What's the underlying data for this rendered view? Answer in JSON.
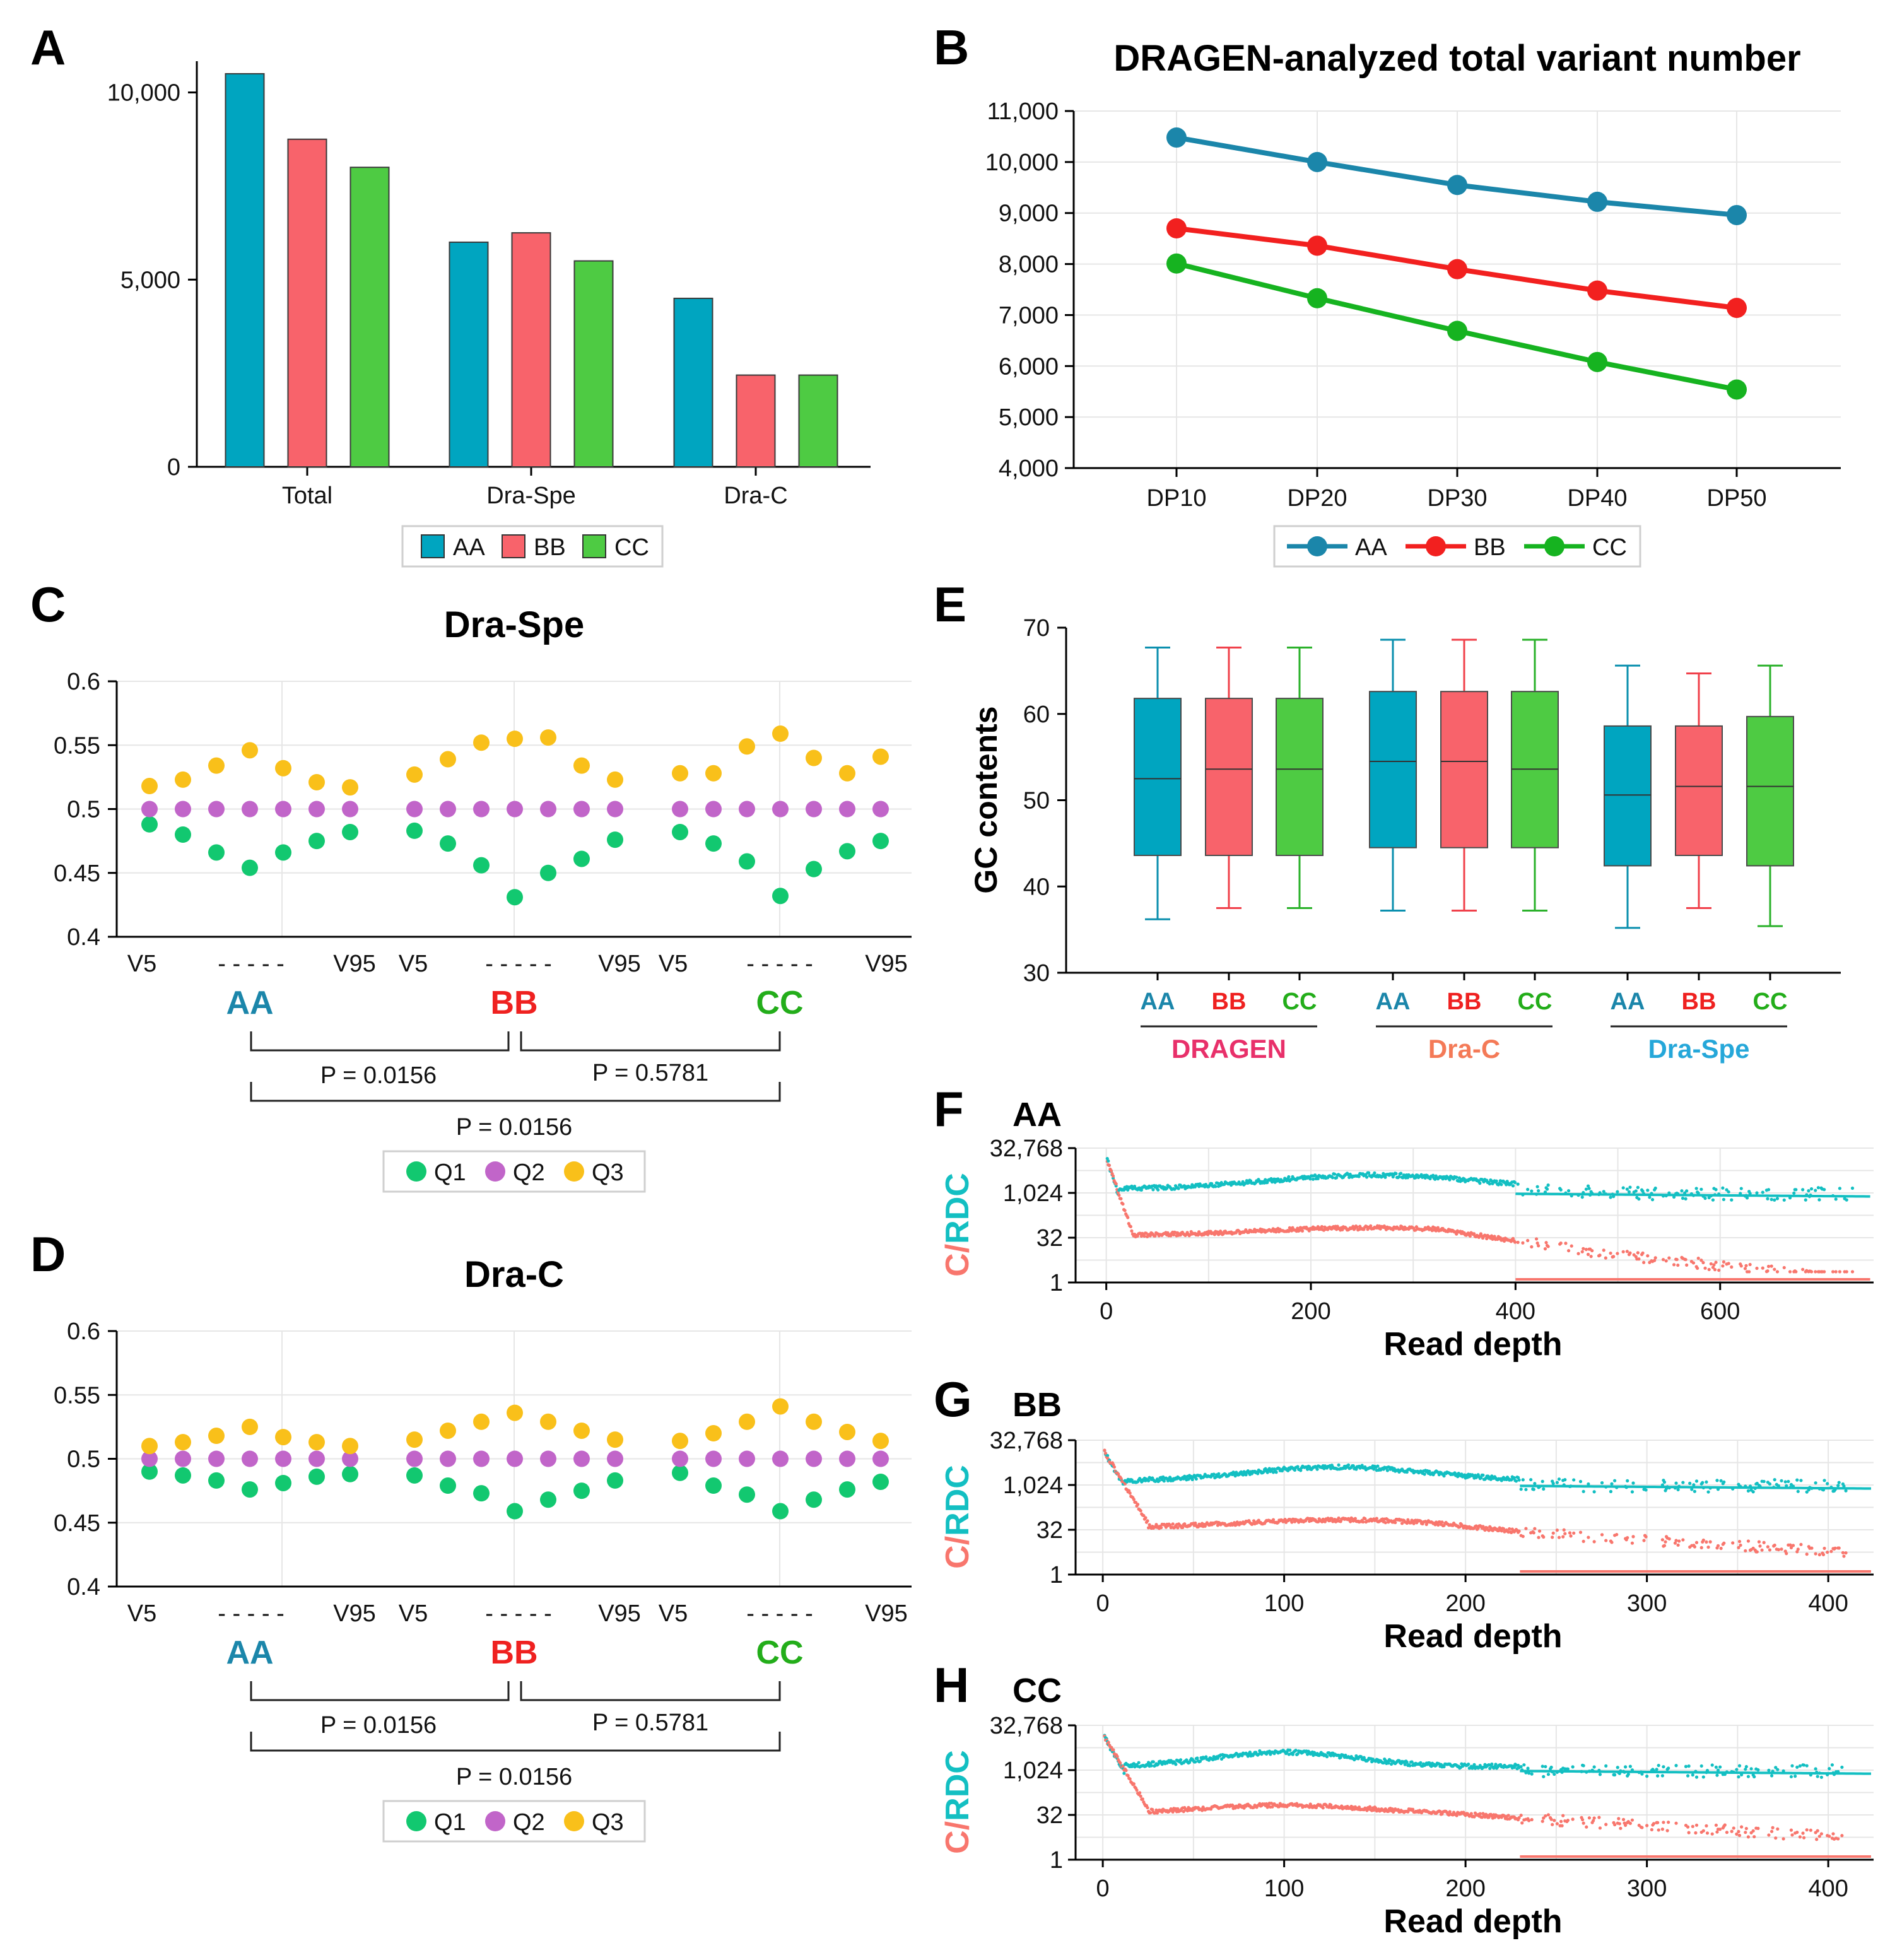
{
  "panels": {
    "A": {
      "letter": "A"
    },
    "B": {
      "letter": "B"
    },
    "C": {
      "letter": "C"
    },
    "D": {
      "letter": "D"
    },
    "E": {
      "letter": "E"
    },
    "F": {
      "letter": "F"
    },
    "G": {
      "letter": "G"
    },
    "H": {
      "letter": "H"
    }
  },
  "colors": {
    "AA": "#00a5c0",
    "BB": "#f8636b",
    "CC": "#4ecb43",
    "line_AA": "#1b86aa",
    "line_BB": "#f2201f",
    "line_CC": "#16b320",
    "Q1": "#12c870",
    "Q2": "#c165c9",
    "Q3": "#f9c01a",
    "C_series": "#13bfc2",
    "RDC_series": "#f8766d",
    "txt_AA": "#1b86aa",
    "txt_BB": "#ef2120",
    "txt_CC": "#23ad1a",
    "grp_DRAGEN": "#e8306a",
    "grp_DraC": "#f47a57",
    "grp_DraSpe": "#25a7d9"
  },
  "chart_data": [
    {
      "id": "A",
      "type": "bar",
      "title": "",
      "categories": [
        "Total",
        "Dra-Spe",
        "Dra-C"
      ],
      "series": [
        {
          "name": "AA",
          "values": [
            10500,
            6000,
            4500
          ]
        },
        {
          "name": "BB",
          "values": [
            8750,
            6250,
            2450
          ]
        },
        {
          "name": "CC",
          "values": [
            8000,
            5500,
            2450
          ]
        }
      ],
      "ylim": [
        0,
        10700
      ],
      "yticks": [
        0,
        5000,
        10000
      ],
      "ytick_labels": [
        "0",
        "5,000",
        "10,000"
      ],
      "legend": [
        "AA",
        "BB",
        "CC"
      ]
    },
    {
      "id": "B",
      "type": "line",
      "title": "DRAGEN-analyzed total variant number",
      "categories": [
        "DP10",
        "DP20",
        "DP30",
        "DP40",
        "DP50"
      ],
      "series": [
        {
          "name": "AA",
          "values": [
            10480,
            10000,
            9550,
            9220,
            8960
          ]
        },
        {
          "name": "BB",
          "values": [
            8700,
            8360,
            7900,
            7480,
            7140
          ]
        },
        {
          "name": "CC",
          "values": [
            8010,
            7330,
            6690,
            6080,
            5540
          ]
        }
      ],
      "ylim": [
        4000,
        11000
      ],
      "yticks": [
        4000,
        5000,
        6000,
        7000,
        8000,
        9000,
        10000,
        11000
      ],
      "ytick_labels": [
        "4,000",
        "5,000",
        "6,000",
        "7,000",
        "8,000",
        "9,000",
        "10,000",
        "11,000"
      ],
      "legend": [
        "AA",
        "BB",
        "CC"
      ]
    },
    {
      "id": "C",
      "type": "scatter",
      "title": "Dra-Spe",
      "ylim": [
        0.4,
        0.6
      ],
      "yticks": [
        0.4,
        0.45,
        0.5,
        0.55,
        0.6
      ],
      "ytick_labels": [
        "0.4",
        "0.45",
        "0.5",
        "0.55",
        "0.6"
      ],
      "groups": [
        "AA",
        "BB",
        "CC"
      ],
      "series": [
        {
          "name": "Q1",
          "values": [
            0.488,
            0.48,
            0.466,
            0.454,
            0.466,
            0.475,
            0.482,
            0.483,
            0.473,
            0.456,
            0.431,
            0.45,
            0.461,
            0.476,
            0.482,
            0.473,
            0.459,
            0.432,
            0.453,
            0.467,
            0.475
          ]
        },
        {
          "name": "Q2",
          "values": [
            0.5,
            0.5,
            0.5,
            0.5,
            0.5,
            0.5,
            0.5,
            0.5,
            0.5,
            0.5,
            0.5,
            0.5,
            0.5,
            0.5,
            0.5,
            0.5,
            0.5,
            0.5,
            0.5,
            0.5,
            0.5
          ]
        },
        {
          "name": "Q3",
          "values": [
            0.518,
            0.523,
            0.534,
            0.546,
            0.532,
            0.521,
            0.517,
            0.527,
            0.539,
            0.552,
            0.555,
            0.556,
            0.534,
            0.523,
            0.528,
            0.528,
            0.549,
            0.559,
            0.54,
            0.528,
            0.541
          ]
        }
      ],
      "xlabels_AA": [
        "V5",
        "- - - - -",
        "V95"
      ],
      "xlabels_BB": [
        "V5",
        "- - - - -",
        "V95"
      ],
      "xlabels_CC": [
        "V5",
        "- - - - -",
        "V95"
      ],
      "pvalues": {
        "AA_BB": "P = 0.0156",
        "BB_CC": "P = 0.5781",
        "AA_CC": "P = 0.0156"
      },
      "legend": [
        "Q1",
        "Q2",
        "Q3"
      ]
    },
    {
      "id": "D",
      "type": "scatter",
      "title": "Dra-C",
      "ylim": [
        0.4,
        0.6
      ],
      "yticks": [
        0.4,
        0.45,
        0.5,
        0.55,
        0.6
      ],
      "ytick_labels": [
        "0.4",
        "0.45",
        "0.5",
        "0.55",
        "0.6"
      ],
      "groups": [
        "AA",
        "BB",
        "CC"
      ],
      "series": [
        {
          "name": "Q1",
          "values": [
            0.49,
            0.487,
            0.483,
            0.476,
            0.481,
            0.486,
            0.488,
            0.487,
            0.479,
            0.473,
            0.459,
            0.468,
            0.475,
            0.483,
            0.489,
            0.479,
            0.472,
            0.459,
            0.468,
            0.476,
            0.482
          ]
        },
        {
          "name": "Q2",
          "values": [
            0.5,
            0.5,
            0.5,
            0.5,
            0.5,
            0.5,
            0.5,
            0.5,
            0.5,
            0.5,
            0.5,
            0.5,
            0.5,
            0.5,
            0.5,
            0.5,
            0.5,
            0.5,
            0.5,
            0.5,
            0.5
          ]
        },
        {
          "name": "Q3",
          "values": [
            0.51,
            0.513,
            0.518,
            0.525,
            0.517,
            0.513,
            0.51,
            0.515,
            0.522,
            0.529,
            0.536,
            0.529,
            0.522,
            0.515,
            0.514,
            0.52,
            0.529,
            0.541,
            0.529,
            0.521,
            0.514
          ]
        }
      ],
      "xlabels_AA": [
        "V5",
        "- - - - -",
        "V95"
      ],
      "xlabels_BB": [
        "V5",
        "- - - - -",
        "V95"
      ],
      "xlabels_CC": [
        "V5",
        "- - - - -",
        "V95"
      ],
      "pvalues": {
        "AA_BB": "P = 0.0156",
        "BB_CC": "P = 0.5781",
        "AA_CC": "P = 0.0156"
      },
      "legend": [
        "Q1",
        "Q2",
        "Q3"
      ]
    },
    {
      "id": "E",
      "type": "box",
      "ylabel": "GC contents",
      "ylim": [
        30,
        70
      ],
      "yticks": [
        30,
        40,
        50,
        60,
        70
      ],
      "ytick_labels": [
        "30",
        "40",
        "50",
        "60",
        "70"
      ],
      "groups": [
        "DRAGEN",
        "Dra-C",
        "Dra-Spe"
      ],
      "boxes": [
        {
          "group": "DRAGEN",
          "name": "AA",
          "min": 36.2,
          "q1": 43.6,
          "median": 52.5,
          "q3": 61.8,
          "max": 67.7
        },
        {
          "group": "DRAGEN",
          "name": "BB",
          "min": 37.5,
          "q1": 43.6,
          "median": 53.6,
          "q3": 61.8,
          "max": 67.7
        },
        {
          "group": "DRAGEN",
          "name": "CC",
          "min": 37.5,
          "q1": 43.6,
          "median": 53.6,
          "q3": 61.8,
          "max": 67.7
        },
        {
          "group": "Dra-C",
          "name": "AA",
          "min": 37.2,
          "q1": 44.5,
          "median": 54.5,
          "q3": 62.6,
          "max": 68.6
        },
        {
          "group": "Dra-C",
          "name": "BB",
          "min": 37.2,
          "q1": 44.5,
          "median": 54.5,
          "q3": 62.6,
          "max": 68.6
        },
        {
          "group": "Dra-C",
          "name": "CC",
          "min": 37.2,
          "q1": 44.5,
          "median": 53.6,
          "q3": 62.6,
          "max": 68.6
        },
        {
          "group": "Dra-Spe",
          "name": "AA",
          "min": 35.2,
          "q1": 42.4,
          "median": 50.6,
          "q3": 58.6,
          "max": 65.6
        },
        {
          "group": "Dra-Spe",
          "name": "BB",
          "min": 37.5,
          "q1": 43.6,
          "median": 51.6,
          "q3": 58.6,
          "max": 64.7
        },
        {
          "group": "Dra-Spe",
          "name": "CC",
          "min": 35.4,
          "q1": 42.4,
          "median": 51.6,
          "q3": 59.7,
          "max": 65.6
        }
      ]
    },
    {
      "id": "F",
      "type": "scatter",
      "title": "AA",
      "xlabel": "Read depth",
      "ylabel_C": "C",
      "ylabel_sep": "/",
      "ylabel_RDC": "RDC",
      "xlim": [
        -30,
        750
      ],
      "xticks": [
        0,
        200,
        400,
        600
      ],
      "ylog_ticks": [
        1,
        32,
        1024,
        32768
      ],
      "ytick_labels": [
        "1",
        "32",
        "1,024",
        "32,768"
      ],
      "peak_depth": 260,
      "dense_until": 400,
      "sparse_until": 730
    },
    {
      "id": "G",
      "type": "scatter",
      "title": "BB",
      "xlabel": "Read depth",
      "ylabel_C": "C",
      "ylabel_sep": "/",
      "ylabel_RDC": "RDC",
      "xlim": [
        -15,
        425
      ],
      "xticks": [
        0,
        100,
        200,
        300,
        400
      ],
      "ylog_ticks": [
        1,
        32,
        1024,
        32768
      ],
      "ytick_labels": [
        "1",
        "32",
        "1,024",
        "32,768"
      ],
      "peak_depth": 130,
      "dense_until": 230,
      "sparse_until": 410
    },
    {
      "id": "H",
      "type": "scatter",
      "title": "CC",
      "xlabel": "Read depth",
      "ylabel_C": "C",
      "ylabel_sep": "/",
      "ylabel_RDC": "RDC",
      "xlim": [
        -15,
        425
      ],
      "xticks": [
        0,
        100,
        200,
        300,
        400
      ],
      "ylog_ticks": [
        1,
        32,
        1024,
        32768
      ],
      "ytick_labels": [
        "1",
        "32",
        "1,024",
        "32,768"
      ],
      "peak_depth": 100,
      "dense_until": 230,
      "sparse_until": 410
    }
  ]
}
